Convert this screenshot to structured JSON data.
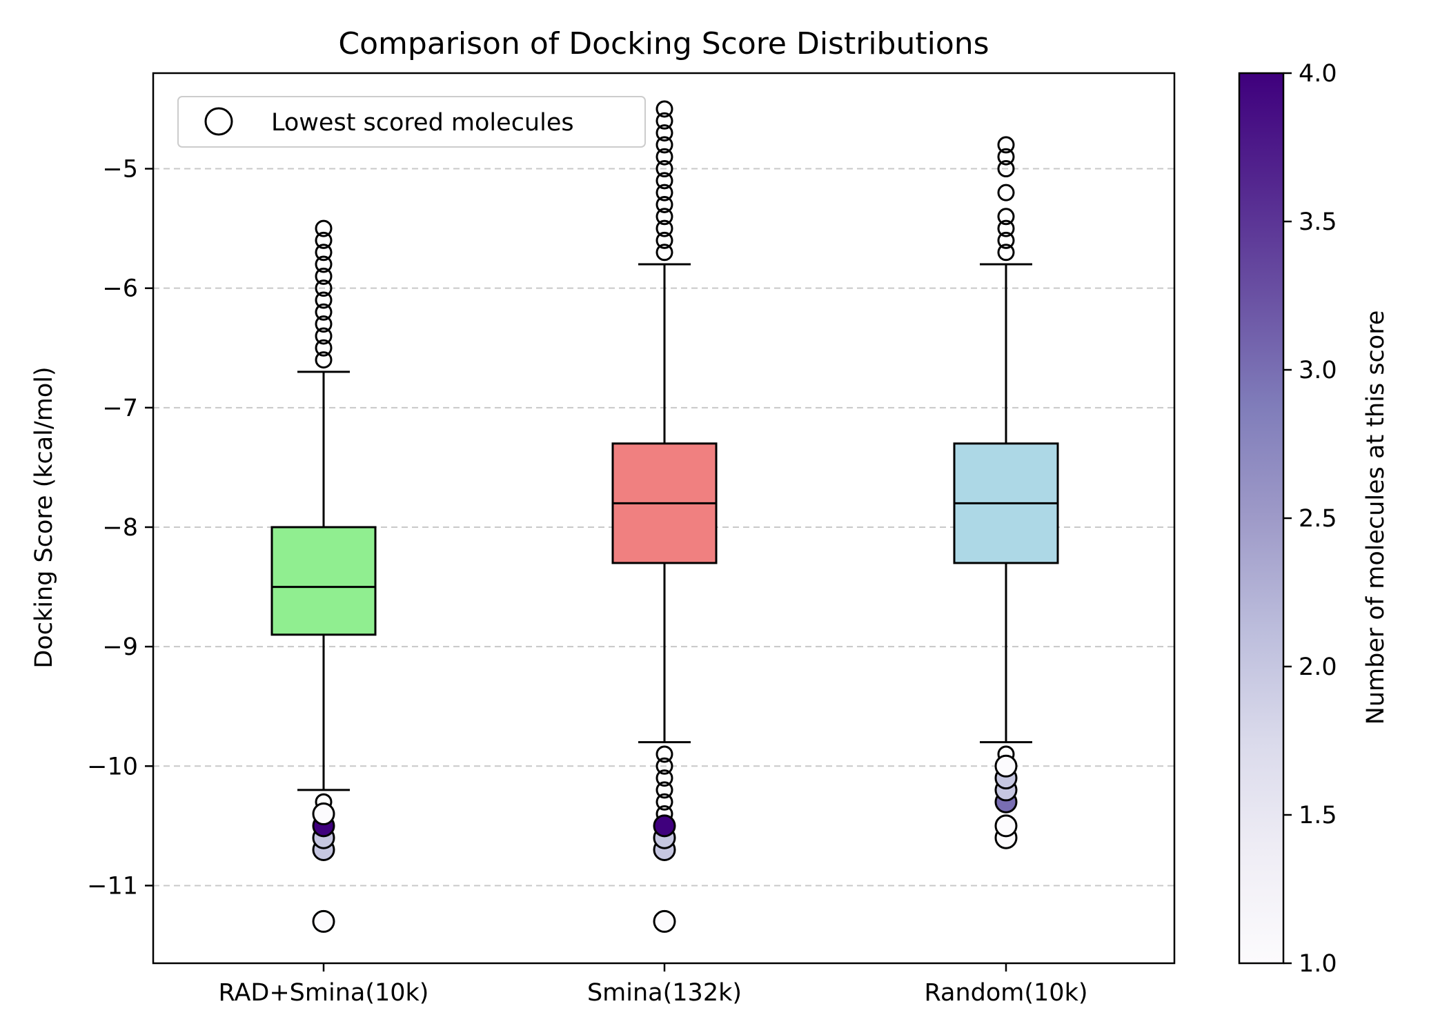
{
  "chart_data": {
    "type": "box",
    "title": "Comparison of Docking Score Distributions",
    "xlabel": "",
    "ylabel": "Docking Score (kcal/mol)",
    "ylim": [
      -11.65,
      -4.2
    ],
    "yticks": [
      -11,
      -10,
      -9,
      -8,
      -7,
      -6,
      -5
    ],
    "ytick_labels": [
      "−11",
      "−10",
      "−9",
      "−8",
      "−7",
      "−6",
      "−5"
    ],
    "grid": "horizontal dashed",
    "categories": [
      "RAD+Smina(10k)",
      "Smina(132k)",
      "Random(10k)"
    ],
    "boxes": [
      {
        "label": "RAD+Smina(10k)",
        "color": "#90ee90",
        "whisker_low": -10.2,
        "q1": -8.9,
        "median": -8.5,
        "q3": -8.0,
        "whisker_high": -6.7,
        "outliers_high": [
          -5.5,
          -5.6,
          -5.7,
          -5.8,
          -5.9,
          -6.0,
          -6.1,
          -6.2,
          -6.3,
          -6.4,
          -6.5,
          -6.6
        ],
        "outliers_low": [
          -10.3,
          -10.4,
          -10.5,
          -10.6,
          -10.7
        ],
        "lowest_scored": [
          {
            "score": -10.7,
            "count": 2
          },
          {
            "score": -10.6,
            "count": 2
          },
          {
            "score": -10.5,
            "count": 4
          },
          {
            "score": -10.4,
            "count": 1
          },
          {
            "score": -11.3,
            "count": 1
          }
        ]
      },
      {
        "label": "Smina(132k)",
        "color": "#f08080",
        "whisker_low": -9.8,
        "q1": -8.3,
        "median": -7.8,
        "q3": -7.3,
        "whisker_high": -5.8,
        "outliers_high": [
          -4.5,
          -4.6,
          -4.7,
          -4.8,
          -4.9,
          -5.0,
          -5.1,
          -5.2,
          -5.3,
          -5.4,
          -5.5,
          -5.6,
          -5.7
        ],
        "outliers_low": [
          -9.9,
          -10.0,
          -10.1,
          -10.2,
          -10.3,
          -10.4,
          -10.5,
          -10.6,
          -10.7
        ],
        "lowest_scored": [
          {
            "score": -10.7,
            "count": 2
          },
          {
            "score": -10.6,
            "count": 2
          },
          {
            "score": -10.5,
            "count": 4
          },
          {
            "score": -11.3,
            "count": 1
          }
        ]
      },
      {
        "label": "Random(10k)",
        "color": "#add8e6",
        "whisker_low": -9.8,
        "q1": -8.3,
        "median": -7.8,
        "q3": -7.3,
        "whisker_high": -5.8,
        "outliers_high": [
          -4.8,
          -4.9,
          -5.0,
          -5.2,
          -5.4,
          -5.5,
          -5.6,
          -5.7
        ],
        "outliers_low": [
          -9.9,
          -10.0,
          -10.1,
          -10.2,
          -10.3,
          -10.5,
          -10.6
        ],
        "lowest_scored": [
          {
            "score": -10.6,
            "count": 1
          },
          {
            "score": -10.5,
            "count": 1
          },
          {
            "score": -10.3,
            "count": 3
          },
          {
            "score": -10.2,
            "count": 2
          },
          {
            "score": -10.1,
            "count": 2
          },
          {
            "score": -10.0,
            "count": 1
          }
        ]
      }
    ],
    "legend": {
      "label": "Lowest scored molecules",
      "location": "upper-left"
    },
    "colorbar": {
      "label": "Number of molecules at this score",
      "min": 1.0,
      "max": 4.0,
      "ticks": [
        1.0,
        1.5,
        2.0,
        2.5,
        3.0,
        3.5,
        4.0
      ],
      "tick_labels": [
        "1.0",
        "1.5",
        "2.0",
        "2.5",
        "3.0",
        "3.5",
        "4.0"
      ],
      "colormap": "Purples",
      "color_low": "#fcfbfd",
      "color_high": "#3f007d"
    }
  }
}
